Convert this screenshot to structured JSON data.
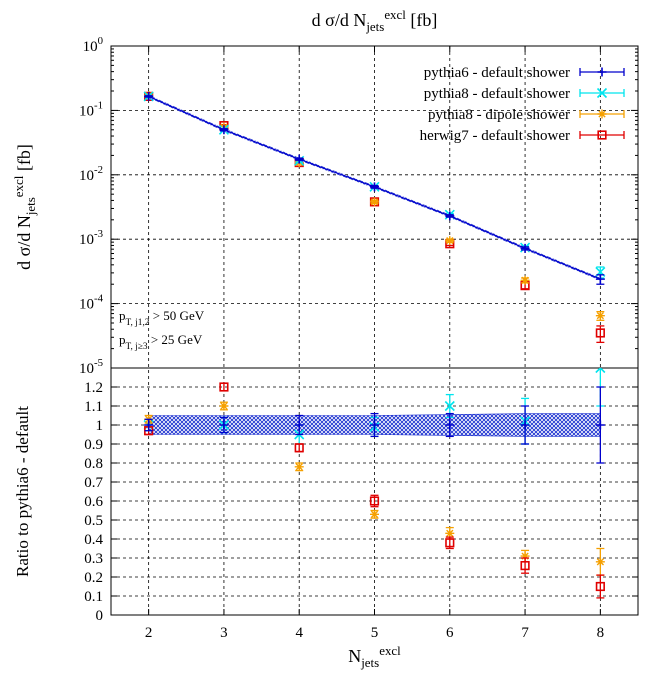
{
  "chart_data": {
    "type": "scatter",
    "title": "d σ/d N",
    "title_sub": "jets",
    "title_sup": "excl",
    "title_unit": "[fb]",
    "xlabel": "N",
    "xlabel_sub": "jets",
    "xlabel_sup": "excl",
    "x": [
      2,
      3,
      4,
      5,
      6,
      7,
      8
    ],
    "xlim": [
      1.5,
      8.5
    ],
    "xticks": [
      "2",
      "3",
      "4",
      "5",
      "6",
      "7",
      "8"
    ],
    "top_panel": {
      "ylabel": "d σ/d N",
      "ylabel_sub": "jets",
      "ylabel_sup": "excl",
      "ylabel_unit": "[fb]",
      "yscale": "log",
      "ylim": [
        1e-05,
        1
      ],
      "ytick_exponents": [
        "0",
        "-1",
        "-2",
        "-3",
        "-4",
        "-5"
      ],
      "yticks": [
        1,
        0.1,
        0.01,
        0.001,
        0.0001,
        1e-05
      ],
      "annotations": [
        {
          "base": "p",
          "sub1": "T",
          "sub2": ", j",
          "sub3": "1,2",
          "rest": "> 50 GeV"
        },
        {
          "base": "p",
          "sub1": "T",
          "sub2": ", j",
          "sub3": "≥3",
          "rest": "> 25 GeV"
        }
      ],
      "series": [
        {
          "name": "pythia6 - default shower",
          "color": "#0000cc",
          "marker": "plus",
          "band": true,
          "values": [
            0.165,
            0.05,
            0.0175,
            0.0065,
            0.0023,
            0.00072,
            0.00024
          ],
          "errors": [
            0.004,
            0.002,
            0.0007,
            0.0003,
            0.0001,
            4e-05,
            4e-05
          ]
        },
        {
          "name": "pythia8 - default shower",
          "color": "#00e5ee",
          "marker": "cross",
          "values": [
            0.165,
            0.05,
            0.0165,
            0.0065,
            0.0024,
            0.00074,
            0.00031
          ],
          "errors": [
            0.004,
            0.002,
            0.0007,
            0.0003,
            0.0001,
            4e-05,
            6e-05
          ]
        },
        {
          "name": "pythia8 - dipole shower",
          "color": "#f5a000",
          "marker": "star",
          "values": [
            0.17,
            0.055,
            0.0155,
            0.0038,
            0.00095,
            0.00023,
            6.5e-05
          ],
          "errors": [
            0.004,
            0.002,
            0.0006,
            0.0002,
            5e-05,
            2e-05,
            1e-05
          ]
        },
        {
          "name": "herwig7 - default shower",
          "color": "#e00000",
          "marker": "square",
          "values": [
            0.165,
            0.058,
            0.0155,
            0.0038,
            0.00085,
            0.00019,
            3.5e-05
          ],
          "errors": [
            0.004,
            0.002,
            0.0006,
            0.0002,
            5e-05,
            2e-05,
            1e-05
          ]
        }
      ]
    },
    "bottom_panel": {
      "ylabel": "Ratio to pythia6 - default",
      "ylim": [
        0,
        1.3
      ],
      "yticks": [
        "0",
        "0.1",
        "0.2",
        "0.3",
        "0.4",
        "0.5",
        "0.6",
        "0.7",
        "0.8",
        "0.9",
        "1",
        "1.1",
        "1.2"
      ],
      "band_halfwidth": [
        0.05,
        0.05,
        0.05,
        0.05,
        0.055,
        0.06,
        0.06
      ],
      "series": [
        {
          "name": "pythia8 - default shower",
          "color": "#00e5ee",
          "marker": "cross",
          "values": [
            1.0,
            1.0,
            0.95,
            0.99,
            1.1,
            1.02,
            1.3
          ],
          "errors": [
            0.03,
            0.04,
            0.05,
            0.05,
            0.06,
            0.12,
            0.2
          ]
        },
        {
          "name": "pythia8 - dipole shower",
          "color": "#f5a000",
          "marker": "star",
          "values": [
            1.03,
            1.1,
            0.78,
            0.53,
            0.43,
            0.31,
            0.28
          ],
          "errors": [
            0.02,
            0.02,
            0.02,
            0.02,
            0.03,
            0.03,
            0.07
          ]
        },
        {
          "name": "herwig7 - default shower",
          "color": "#e00000",
          "marker": "square",
          "values": [
            0.97,
            1.2,
            0.88,
            0.6,
            0.38,
            0.26,
            0.15
          ],
          "errors": [
            0.02,
            0.02,
            0.02,
            0.03,
            0.03,
            0.04,
            0.06
          ]
        },
        {
          "name": "pythia6 - default shower",
          "color": "#0000cc",
          "marker": "plus",
          "values": [
            1.0,
            1.0,
            1.0,
            1.0,
            1.0,
            1.0,
            1.0
          ],
          "errors": [
            0.03,
            0.04,
            0.05,
            0.06,
            0.06,
            0.1,
            0.2
          ]
        }
      ]
    },
    "grid": true,
    "legend_position": "top-right"
  }
}
